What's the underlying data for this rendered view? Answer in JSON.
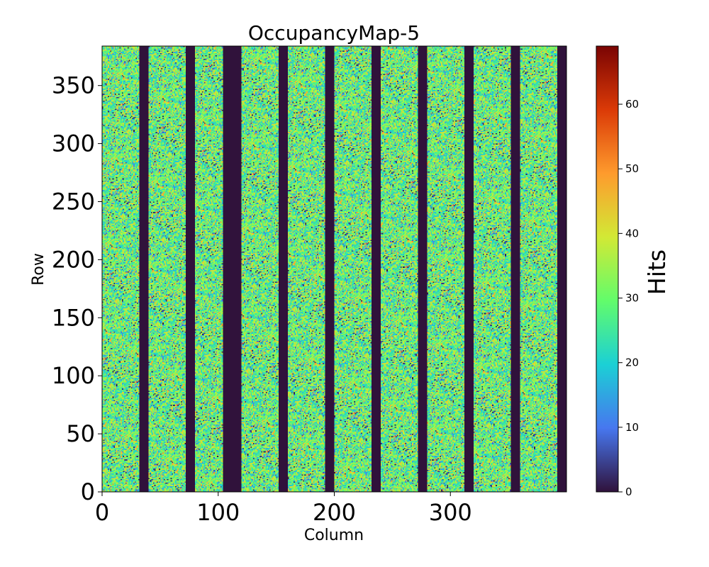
{
  "chart_data": {
    "type": "heatmap",
    "title": "OccupancyMap-5",
    "xlabel": "Column",
    "ylabel": "Row",
    "xlim": [
      0,
      400
    ],
    "ylim": [
      0,
      384
    ],
    "x_ticks": [
      0,
      100,
      200,
      300
    ],
    "y_ticks": [
      0,
      50,
      100,
      150,
      200,
      250,
      300,
      350
    ],
    "colorbar": {
      "label": "Hits",
      "range": [
        0,
        69
      ],
      "ticks": [
        0,
        10,
        20,
        30,
        40,
        50,
        60
      ],
      "colormap": "turbo",
      "colors": [
        "#30123b",
        "#4777ef",
        "#1bd0d5",
        "#62fc6b",
        "#d2e935",
        "#fe9b2d",
        "#db3a07",
        "#7a0403"
      ]
    },
    "empty_column_bands": [
      [
        32,
        40
      ],
      [
        72,
        80
      ],
      [
        104,
        120
      ],
      [
        152,
        160
      ],
      [
        192,
        200
      ],
      [
        232,
        240
      ],
      [
        272,
        280
      ],
      [
        312,
        320
      ],
      [
        352,
        360
      ],
      [
        392,
        400
      ]
    ],
    "hits_distribution_in_active_columns": {
      "min": 0,
      "typical": 30,
      "max": 69
    },
    "grid": false,
    "legend_placement": "right (colorbar)"
  }
}
